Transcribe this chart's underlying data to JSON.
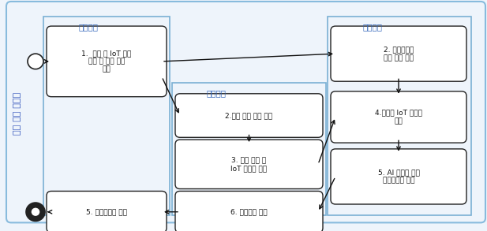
{
  "outer_bg": "#eef4fb",
  "outer_edge": "#88bbdd",
  "section_edge": "#7ab0d4",
  "section_label_color": "#3366bb",
  "box_edge": "#222222",
  "box_fill": "#ffffff",
  "arrow_color": "#111111",
  "label_jaryopyeul": "자료표출",
  "label_bunseokcheori": "분석처리",
  "label_jaryogwanri": "자료관리",
  "label_vertical": "융합 활용 플랫폼",
  "b1_text": "1.  위성 및 IoT 정보\n검색 및 관심 지역\n전달",
  "b2_text": "2. 융합산출물\n생산 주문 수신",
  "b3_text": "2.관심 지역 정보 수신",
  "b4_text": "3. 해당 영상 및\nIoT 데이터 전달",
  "b5_text": "4.영상및 IoT 데이터\n수신",
  "b6_text": "5. AI 처리를 통한\n융합산출물 생산",
  "b7_text": "6. 자료관리 등록",
  "b8_text": "5. 융합산출물 표출"
}
